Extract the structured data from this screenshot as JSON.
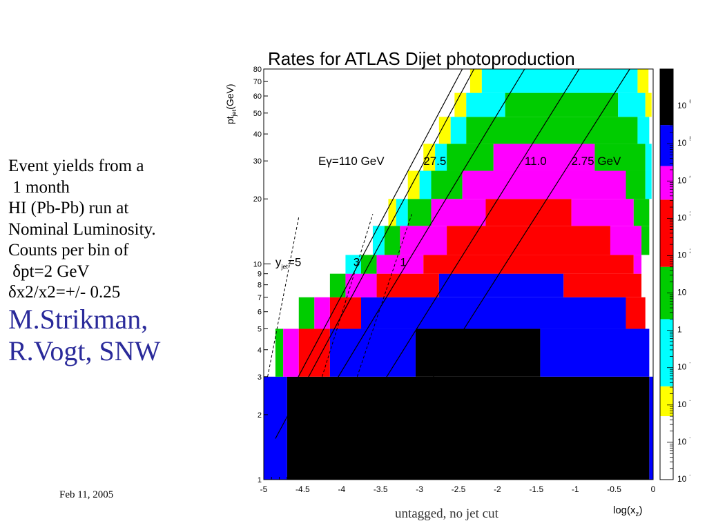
{
  "slide": {
    "body_lines": [
      "Event yields from a",
      " 1 month",
      "HI (Pb-Pb) run at",
      "Nominal Luminosity.",
      "Counts per bin of",
      " δpt=2 GeV",
      "δx2/x2=+/- 0.25"
    ],
    "author_lines": [
      "M.Strikman,",
      "R.Vogt, SNW"
    ],
    "date": "Feb 11, 2005",
    "caption": "untagged, no jet cut"
  },
  "chart_data": {
    "type": "heatmap",
    "title": "Rates for ATLAS Dijet photoproduction",
    "xlabel": "log(x",
    "xlabel_sub": "z",
    "xlabel_close": ")",
    "ylabel": "pt",
    "ylabel_sub": "jet",
    "ylabel_unit": "(GeV)",
    "xlim": [
      -5,
      0
    ],
    "ylim": [
      1,
      80
    ],
    "yscale": "log",
    "x_ticks": [
      -5,
      -4.5,
      -4,
      -3.5,
      -3,
      -2.5,
      -2,
      -1.5,
      -1,
      -0.5,
      0
    ],
    "x_tick_labels": [
      "-5",
      "-4.5",
      "-4",
      "-3.5",
      "-3",
      "-2.5",
      "-2",
      "-1.5",
      "-1",
      "-0.5",
      "0"
    ],
    "y_ticks": [
      1,
      2,
      3,
      4,
      5,
      6,
      7,
      8,
      9,
      10,
      20,
      30,
      40,
      50,
      60,
      70,
      80
    ],
    "y_tick_labels": [
      "1",
      "2",
      "3",
      "4",
      "5",
      "6",
      "7",
      "8",
      "9",
      "10",
      "20",
      "30",
      "40",
      "50",
      "60",
      "70",
      "80"
    ],
    "colorbar": {
      "scale": "log",
      "min_exp": -4,
      "max_exp": 7,
      "colors": [
        "#ffffff",
        "#ffff00",
        "#00ffff",
        "#00cc00",
        "#ff0000",
        "#ff00ff",
        "#0000ff",
        "#000000"
      ],
      "bands": [
        {
          "from": -4.0,
          "to": -2.3,
          "color": "#ffffff"
        },
        {
          "from": -2.3,
          "to": -1.5,
          "color": "#ffff00"
        },
        {
          "from": -1.5,
          "to": 0.3,
          "color": "#00ffff"
        },
        {
          "from": 0.3,
          "to": 1.7,
          "color": "#00cc00"
        },
        {
          "from": 1.7,
          "to": 3.5,
          "color": "#ff0000"
        },
        {
          "from": 3.5,
          "to": 4.4,
          "color": "#ff00ff"
        },
        {
          "from": 4.4,
          "to": 5.5,
          "color": "#0000ff"
        },
        {
          "from": 5.5,
          "to": 7.0,
          "color": "#000000"
        }
      ],
      "labels": [
        {
          "base": "10",
          "exp": "6",
          "value": 6
        },
        {
          "base": "10",
          "exp": "5",
          "value": 5
        },
        {
          "base": "10",
          "exp": "4",
          "value": 4
        },
        {
          "base": "10",
          "exp": "3",
          "value": 3
        },
        {
          "base": "10",
          "exp": "2",
          "value": 2
        },
        {
          "base": "10",
          "exp": "",
          "value": 1
        },
        {
          "base": "1",
          "exp": "",
          "value": 0
        },
        {
          "base": "10",
          "exp": "-1",
          "value": -1
        },
        {
          "base": "10",
          "exp": "-2",
          "value": -2
        },
        {
          "base": "10",
          "exp": "-3",
          "value": -3
        },
        {
          "base": "10",
          "exp": "-4",
          "value": -4
        }
      ]
    },
    "regions": [
      {
        "color": "#0000ff",
        "x0": -5.0,
        "x1": -4.7,
        "y0": 1.0,
        "y1": 3.0
      },
      {
        "color": "#0000ff",
        "x0": -0.05,
        "x1": 0.0,
        "y0": 1.0,
        "y1": 3.0
      },
      {
        "color": "#000000",
        "x0": -4.7,
        "x1": -0.05,
        "y0": 1.0,
        "y1": 3.0
      },
      {
        "color": "#00cc00",
        "x0": -4.85,
        "x1": -4.75,
        "y0": 3.0,
        "y1": 5.0
      },
      {
        "color": "#ff00ff",
        "x0": -4.75,
        "x1": -4.55,
        "y0": 3.0,
        "y1": 5.0
      },
      {
        "color": "#ff0000",
        "x0": -4.55,
        "x1": -4.15,
        "y0": 3.0,
        "y1": 5.0
      },
      {
        "color": "#0000ff",
        "x0": -4.15,
        "x1": -3.05,
        "y0": 3.0,
        "y1": 5.0
      },
      {
        "color": "#000000",
        "x0": -3.05,
        "x1": -1.45,
        "y0": 3.0,
        "y1": 5.0
      },
      {
        "color": "#0000ff",
        "x0": -1.45,
        "x1": -0.05,
        "y0": 3.0,
        "y1": 5.0
      },
      {
        "color": "#00cc00",
        "x0": -4.55,
        "x1": -4.35,
        "y0": 5.0,
        "y1": 7.0
      },
      {
        "color": "#ff00ff",
        "x0": -4.35,
        "x1": -4.15,
        "y0": 5.0,
        "y1": 7.0
      },
      {
        "color": "#ff0000",
        "x0": -4.15,
        "x1": -3.75,
        "y0": 5.0,
        "y1": 7.0
      },
      {
        "color": "#0000ff",
        "x0": -3.75,
        "x1": -0.35,
        "y0": 5.0,
        "y1": 7.0
      },
      {
        "color": "#ff0000",
        "x0": -0.35,
        "x1": -0.1,
        "y0": 5.0,
        "y1": 7.0
      },
      {
        "color": "#00cc00",
        "x0": -4.15,
        "x1": -3.95,
        "y0": 7.0,
        "y1": 9.0
      },
      {
        "color": "#ff00ff",
        "x0": -3.95,
        "x1": -3.55,
        "y0": 7.0,
        "y1": 9.0
      },
      {
        "color": "#ff0000",
        "x0": -3.55,
        "x1": -2.75,
        "y0": 7.0,
        "y1": 9.0
      },
      {
        "color": "#0000ff",
        "x0": -2.75,
        "x1": -1.15,
        "y0": 7.0,
        "y1": 9.0
      },
      {
        "color": "#ff0000",
        "x0": -1.15,
        "x1": -0.15,
        "y0": 7.0,
        "y1": 9.0
      },
      {
        "color": "#00ffff",
        "x0": -3.95,
        "x1": -3.75,
        "y0": 9.0,
        "y1": 11.0
      },
      {
        "color": "#00cc00",
        "x0": -3.75,
        "x1": -3.55,
        "y0": 9.0,
        "y1": 11.0
      },
      {
        "color": "#ff00ff",
        "x0": -3.55,
        "x1": -2.95,
        "y0": 9.0,
        "y1": 11.0
      },
      {
        "color": "#ff0000",
        "x0": -2.95,
        "x1": -0.25,
        "y0": 9.0,
        "y1": 11.0
      },
      {
        "color": "#ff00ff",
        "x0": -0.25,
        "x1": -0.15,
        "y0": 9.0,
        "y1": 11.0
      },
      {
        "color": "#00ffff",
        "x0": -3.6,
        "x1": -3.45,
        "y0": 11.0,
        "y1": 15.0
      },
      {
        "color": "#00cc00",
        "x0": -3.45,
        "x1": -3.25,
        "y0": 11.0,
        "y1": 15.0
      },
      {
        "color": "#ff00ff",
        "x0": -3.25,
        "x1": -2.65,
        "y0": 11.0,
        "y1": 15.0
      },
      {
        "color": "#ff0000",
        "x0": -2.65,
        "x1": -0.55,
        "y0": 11.0,
        "y1": 15.0
      },
      {
        "color": "#ff00ff",
        "x0": -0.55,
        "x1": -0.15,
        "y0": 11.0,
        "y1": 15.0
      },
      {
        "color": "#00cc00",
        "x0": -0.15,
        "x1": -0.05,
        "y0": 11.0,
        "y1": 15.0
      },
      {
        "color": "#ffff00",
        "x0": -3.4,
        "x1": -3.3,
        "y0": 15.0,
        "y1": 20.0
      },
      {
        "color": "#00ffff",
        "x0": -3.3,
        "x1": -3.15,
        "y0": 15.0,
        "y1": 20.0
      },
      {
        "color": "#00cc00",
        "x0": -3.15,
        "x1": -2.85,
        "y0": 15.0,
        "y1": 20.0
      },
      {
        "color": "#ff00ff",
        "x0": -2.85,
        "x1": -2.15,
        "y0": 15.0,
        "y1": 20.0
      },
      {
        "color": "#ff0000",
        "x0": -2.15,
        "x1": -1.05,
        "y0": 15.0,
        "y1": 20.0
      },
      {
        "color": "#ff00ff",
        "x0": -1.05,
        "x1": -0.25,
        "y0": 15.0,
        "y1": 20.0
      },
      {
        "color": "#00cc00",
        "x0": -0.25,
        "x1": -0.05,
        "y0": 15.0,
        "y1": 20.0
      },
      {
        "color": "#ffff00",
        "x0": -3.15,
        "x1": -3.0,
        "y0": 20.0,
        "y1": 27.0
      },
      {
        "color": "#00ffff",
        "x0": -3.0,
        "x1": -2.85,
        "y0": 20.0,
        "y1": 27.0
      },
      {
        "color": "#00cc00",
        "x0": -2.85,
        "x1": -2.45,
        "y0": 20.0,
        "y1": 27.0
      },
      {
        "color": "#ff00ff",
        "x0": -2.45,
        "x1": -0.35,
        "y0": 20.0,
        "y1": 27.0
      },
      {
        "color": "#00cc00",
        "x0": -0.35,
        "x1": -0.1,
        "y0": 20.0,
        "y1": 27.0
      },
      {
        "color": "#00ffff",
        "x0": -0.1,
        "x1": -0.02,
        "y0": 20.0,
        "y1": 27.0
      },
      {
        "color": "#ffff00",
        "x0": -2.95,
        "x1": -2.8,
        "y0": 27.0,
        "y1": 36.0
      },
      {
        "color": "#00ffff",
        "x0": -2.8,
        "x1": -2.65,
        "y0": 27.0,
        "y1": 36.0
      },
      {
        "color": "#00cc00",
        "x0": -2.65,
        "x1": -2.05,
        "y0": 27.0,
        "y1": 36.0
      },
      {
        "color": "#ff00ff",
        "x0": -2.05,
        "x1": -0.75,
        "y0": 27.0,
        "y1": 36.0
      },
      {
        "color": "#00cc00",
        "x0": -0.75,
        "x1": -0.1,
        "y0": 27.0,
        "y1": 36.0
      },
      {
        "color": "#00ffff",
        "x0": -0.1,
        "x1": -0.02,
        "y0": 27.0,
        "y1": 36.0
      },
      {
        "color": "#ffff00",
        "x0": -2.75,
        "x1": -2.6,
        "y0": 36.0,
        "y1": 48.0
      },
      {
        "color": "#00ffff",
        "x0": -2.6,
        "x1": -2.4,
        "y0": 36.0,
        "y1": 48.0
      },
      {
        "color": "#00cc00",
        "x0": -2.4,
        "x1": -0.2,
        "y0": 36.0,
        "y1": 48.0
      },
      {
        "color": "#00ffff",
        "x0": -0.2,
        "x1": -0.05,
        "y0": 36.0,
        "y1": 48.0
      },
      {
        "color": "#ffff00",
        "x0": -2.55,
        "x1": -2.4,
        "y0": 48.0,
        "y1": 62.0
      },
      {
        "color": "#00ffff",
        "x0": -2.4,
        "x1": -1.9,
        "y0": 48.0,
        "y1": 62.0
      },
      {
        "color": "#00cc00",
        "x0": -1.9,
        "x1": -0.45,
        "y0": 48.0,
        "y1": 62.0
      },
      {
        "color": "#00ffff",
        "x0": -0.45,
        "x1": -0.1,
        "y0": 48.0,
        "y1": 62.0
      },
      {
        "color": "#ffff00",
        "x0": -0.1,
        "x1": -0.02,
        "y0": 48.0,
        "y1": 62.0
      },
      {
        "color": "#ffff00",
        "x0": -2.35,
        "x1": -2.2,
        "y0": 62.0,
        "y1": 80.0
      },
      {
        "color": "#00ffff",
        "x0": -2.2,
        "x1": -0.2,
        "y0": 62.0,
        "y1": 80.0
      },
      {
        "color": "#ffff00",
        "x0": -0.2,
        "x1": -0.06,
        "y0": 62.0,
        "y1": 80.0
      }
    ],
    "solid_lines": [
      {
        "x0": -4.6,
        "y0": 2.8,
        "x1": -2.45,
        "y1": 80
      },
      {
        "x0": -4.85,
        "y0": 1.55,
        "x1": -2.3,
        "y1": 80
      },
      {
        "x0": -4.5,
        "y0": 1.6,
        "x1": -1.65,
        "y1": 80
      },
      {
        "x0": -3.5,
        "y0": 2.7,
        "x1": -0.95,
        "y1": 80
      },
      {
        "x0": -2.9,
        "y0": 2.7,
        "x1": -0.3,
        "y1": 80
      }
    ],
    "dashed_lines": [
      {
        "x0": -4.95,
        "y0": 3.0,
        "x1": -4.55,
        "y1": 16.5
      },
      {
        "x0": -4.25,
        "y0": 3.0,
        "x1": -3.6,
        "y1": 17.0
      },
      {
        "x0": -3.8,
        "y0": 3.0,
        "x1": -3.1,
        "y1": 17.0
      }
    ],
    "annotations": [
      {
        "text": "Eγ=110 GeV",
        "x": -4.3,
        "y": 30
      },
      {
        "text": "27.5",
        "x": -2.95,
        "y": 30
      },
      {
        "text": "11.0",
        "x": -1.65,
        "y": 30
      },
      {
        "text": "2.75 GeV",
        "x": -1.05,
        "y": 30
      },
      {
        "text": "y",
        "sub": "jet",
        "tail": "=5",
        "x": -4.85,
        "y": 10.2
      },
      {
        "text": "3",
        "x": -3.85,
        "y": 10.2
      },
      {
        "text": "1",
        "x": -3.25,
        "y": 10.2
      }
    ]
  }
}
